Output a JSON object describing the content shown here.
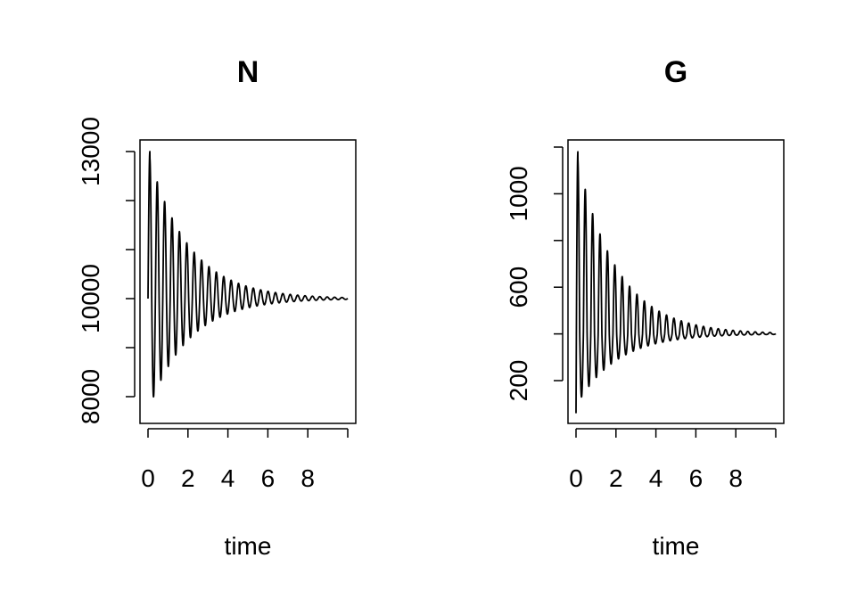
{
  "chart_data": [
    {
      "type": "line",
      "title": "N",
      "xlabel": "time",
      "ylabel": "",
      "xlim": [
        0,
        10
      ],
      "ylim": [
        7300,
        13300
      ],
      "x_ticks": [
        0,
        2,
        4,
        6,
        8,
        10
      ],
      "x_tick_labels": [
        "0",
        "2",
        "4",
        "6",
        "8"
      ],
      "y_ticks": [
        8000,
        9000,
        10000,
        11000,
        12000,
        13000
      ],
      "y_tick_labels": [
        "8000",
        "10000",
        "13000"
      ],
      "grid": false,
      "series": [
        {
          "start": 10000,
          "equilibrium": 10000,
          "first_peak": 13000,
          "first_trough": 7700,
          "period": 0.37,
          "damping_rate": 0.5,
          "x_end": 10
        }
      ]
    },
    {
      "type": "line",
      "title": "G",
      "xlabel": "time",
      "ylabel": "",
      "xlim": [
        0,
        10
      ],
      "ylim": [
        0,
        1240
      ],
      "x_ticks": [
        0,
        2,
        4,
        6,
        8,
        10
      ],
      "x_tick_labels": [
        "0",
        "2",
        "4",
        "6",
        "8"
      ],
      "y_ticks": [
        200,
        400,
        600,
        800,
        1000,
        1200
      ],
      "y_tick_labels": [
        "200",
        "600",
        "1000"
      ],
      "grid": false,
      "series": [
        {
          "start": 60,
          "equilibrium": 400,
          "first_peak": 1180,
          "first_trough": 90,
          "period": 0.37,
          "damping_rate": 0.5,
          "x_end": 10
        }
      ]
    }
  ]
}
